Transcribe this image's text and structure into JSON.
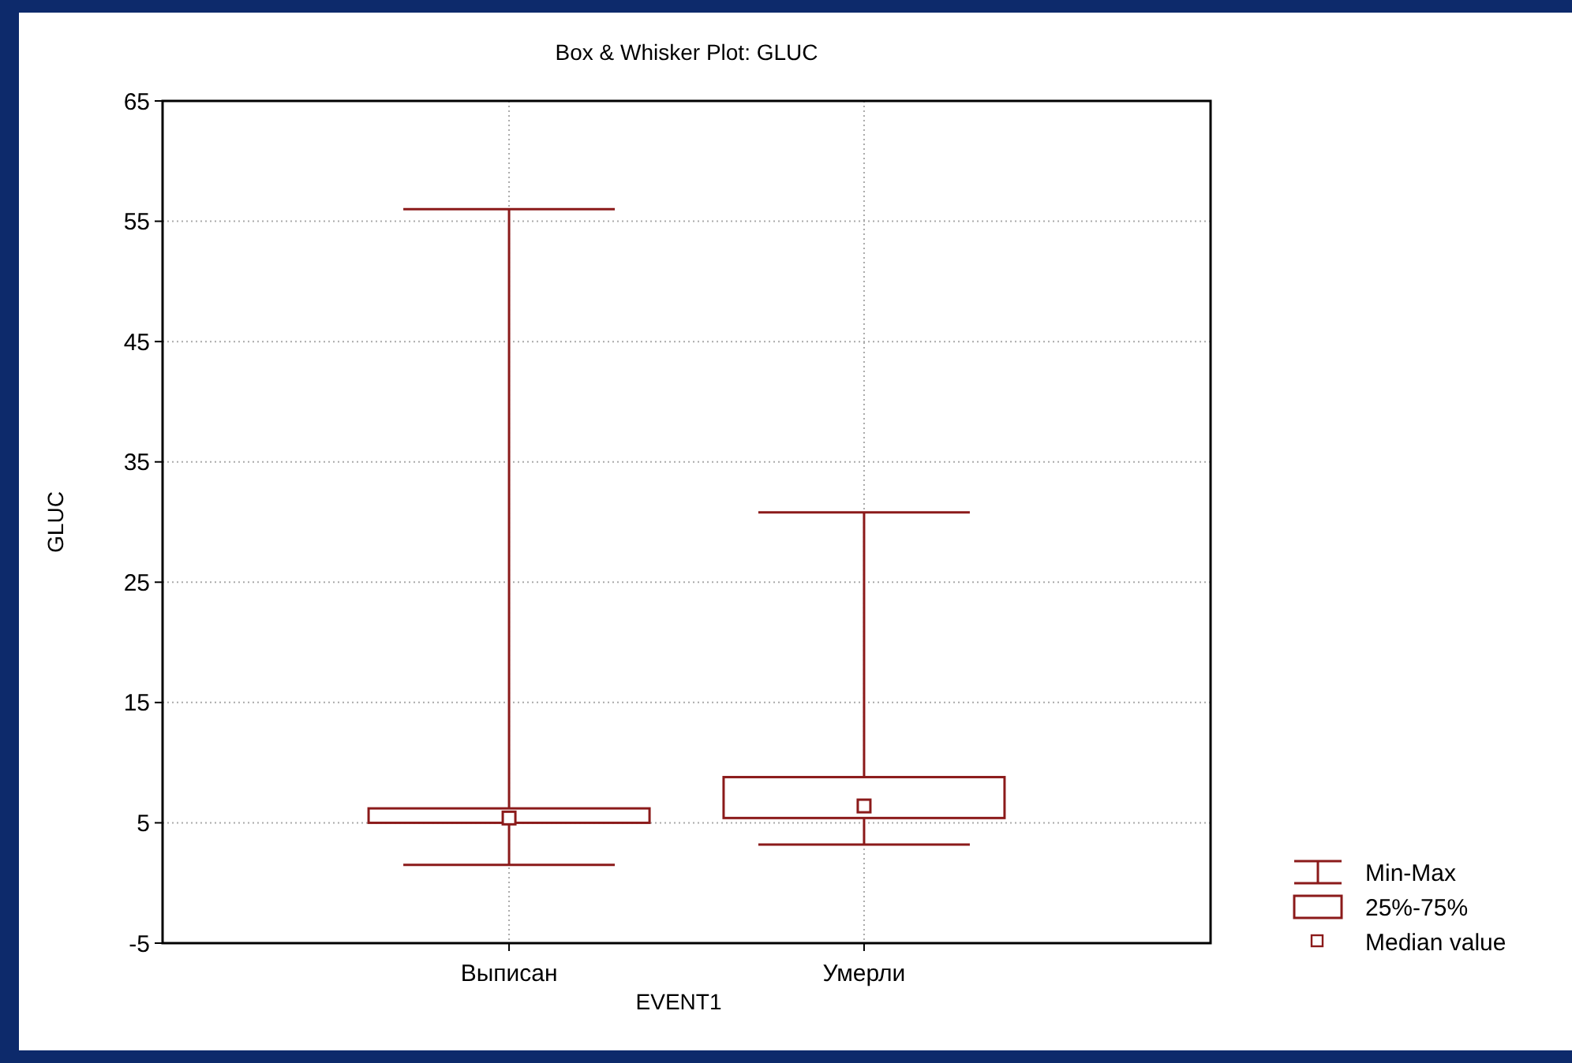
{
  "chart_data": {
    "type": "box",
    "title": "Box & Whisker Plot: GLUC",
    "xlabel": "EVENT1",
    "ylabel": "GLUC",
    "categories": [
      "Выписан",
      "Умерли"
    ],
    "series": [
      {
        "color": "#8b1a1a",
        "boxes": [
          {
            "low": 1.5,
            "q1": 5.0,
            "median": 5.4,
            "q3": 6.2,
            "high": 56.0
          },
          {
            "low": 3.2,
            "q1": 5.4,
            "median": 6.4,
            "q3": 8.8,
            "high": 30.8
          }
        ]
      }
    ],
    "ylim": [
      -5,
      65
    ],
    "yticks": [
      -5,
      5,
      15,
      25,
      35,
      45,
      55,
      65
    ],
    "grid": true,
    "annotations": [
      "Min-Max",
      "25%-75%",
      "Median value"
    ]
  }
}
